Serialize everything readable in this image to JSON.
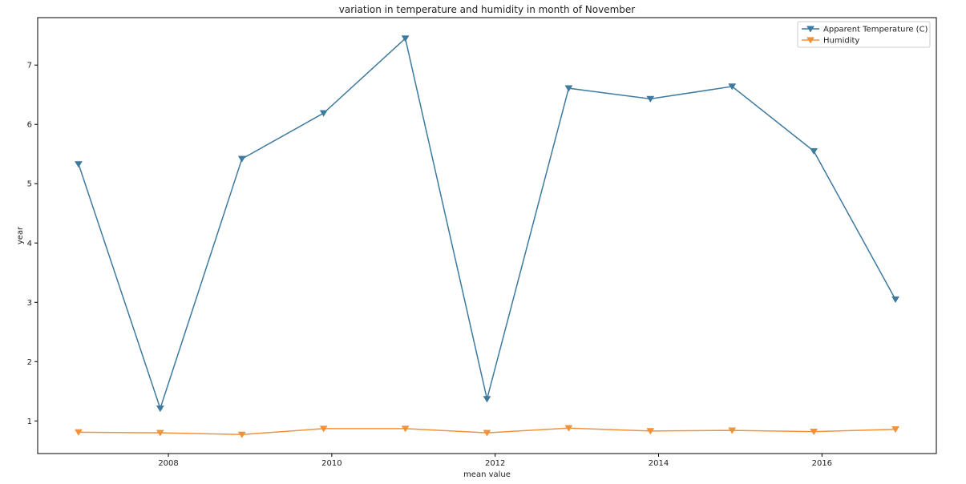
{
  "chart_data": {
    "type": "line",
    "title": "variation in temperature and humidity in month of November",
    "xlabel": "mean value",
    "ylabel": "year",
    "x": [
      2006.9,
      2007.9,
      2008.9,
      2009.9,
      2010.9,
      2011.9,
      2012.9,
      2013.9,
      2014.9,
      2015.9,
      2016.9
    ],
    "xlim": [
      2006.4,
      2017.4
    ],
    "ylim": [
      0.45,
      7.8
    ],
    "xticks": [
      2008,
      2010,
      2012,
      2014,
      2016
    ],
    "xtick_labels": [
      "2008",
      "2010",
      "2012",
      "2014",
      "2016"
    ],
    "yticks": [
      1,
      2,
      3,
      4,
      5,
      6,
      7
    ],
    "ytick_labels": [
      "1",
      "2",
      "3",
      "4",
      "5",
      "6",
      "7"
    ],
    "grid": false,
    "legend_position": "top-right",
    "marker": "triangle-down",
    "series": [
      {
        "name": "Apparent Temperature (C)",
        "color": "#3d7a9e",
        "values": [
          5.33,
          1.21,
          5.42,
          6.19,
          7.45,
          1.37,
          6.61,
          6.43,
          6.64,
          5.55,
          3.05
        ]
      },
      {
        "name": "Humidity",
        "color": "#f0923c",
        "values": [
          0.81,
          0.8,
          0.77,
          0.87,
          0.87,
          0.8,
          0.88,
          0.83,
          0.84,
          0.82,
          0.86
        ]
      }
    ]
  }
}
